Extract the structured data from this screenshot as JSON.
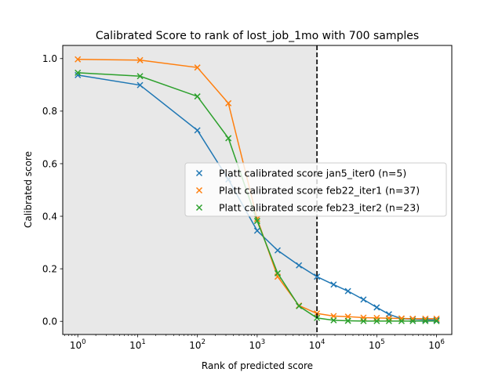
{
  "chart_data": {
    "type": "line",
    "title": "Calibrated Score to rank of lost_job_1mo with 700 samples",
    "xlabel": "Rank of predicted score",
    "ylabel": "Calibrated score",
    "xscale": "log",
    "xlim": [
      0.56,
      1800000
    ],
    "ylim": [
      -0.05,
      1.05
    ],
    "x_ticks": [
      {
        "value": 1,
        "base": "10",
        "exp": "0"
      },
      {
        "value": 10,
        "base": "10",
        "exp": "1"
      },
      {
        "value": 100,
        "base": "10",
        "exp": "2"
      },
      {
        "value": 1000,
        "base": "10",
        "exp": "3"
      },
      {
        "value": 10000,
        "base": "10",
        "exp": "4"
      },
      {
        "value": 100000,
        "base": "10",
        "exp": "5"
      },
      {
        "value": 1000000,
        "base": "10",
        "exp": "6"
      }
    ],
    "y_ticks": [
      {
        "value": 0.0,
        "label": "0.0"
      },
      {
        "value": 0.2,
        "label": "0.2"
      },
      {
        "value": 0.4,
        "label": "0.4"
      },
      {
        "value": 0.6,
        "label": "0.6"
      },
      {
        "value": 0.8,
        "label": "0.8"
      },
      {
        "value": 1.0,
        "label": "1.0"
      }
    ],
    "shaded_region": {
      "x_from": 0.56,
      "x_to": 10000,
      "color": "#e8e8e8"
    },
    "vline": {
      "x": 10000,
      "color": "#000000",
      "style": "dashed"
    },
    "legend_position": "center-right",
    "marker": "x",
    "series": [
      {
        "name": "Platt calibrated score jan5_iter0 (n=5)",
        "color": "#1f77b4",
        "points": [
          [
            1,
            0.937
          ],
          [
            11,
            0.899
          ],
          [
            100,
            0.727
          ],
          [
            330,
            0.54
          ],
          [
            1000,
            0.345
          ],
          [
            2200,
            0.27
          ],
          [
            5000,
            0.213
          ],
          [
            10000,
            0.17
          ],
          [
            19000,
            0.14
          ],
          [
            33000,
            0.115
          ],
          [
            60000,
            0.083
          ],
          [
            100000,
            0.053
          ],
          [
            160000,
            0.027
          ],
          [
            260000,
            0.01
          ],
          [
            400000,
            0.008
          ],
          [
            650000,
            0.006
          ],
          [
            1000000,
            0.005
          ]
        ]
      },
      {
        "name": "Platt calibrated score feb22_iter1 (n=37)",
        "color": "#ff7f0e",
        "points": [
          [
            1,
            0.997
          ],
          [
            11,
            0.994
          ],
          [
            100,
            0.966
          ],
          [
            330,
            0.83
          ],
          [
            1000,
            0.39
          ],
          [
            2200,
            0.17
          ],
          [
            5000,
            0.06
          ],
          [
            10000,
            0.03
          ],
          [
            19000,
            0.02
          ],
          [
            33000,
            0.018
          ],
          [
            60000,
            0.014
          ],
          [
            100000,
            0.013
          ],
          [
            160000,
            0.012
          ],
          [
            260000,
            0.011
          ],
          [
            400000,
            0.01
          ],
          [
            650000,
            0.01
          ],
          [
            1000000,
            0.01
          ]
        ]
      },
      {
        "name": "Platt calibrated score feb23_iter2 (n=23)",
        "color": "#2ca02c",
        "points": [
          [
            1,
            0.946
          ],
          [
            11,
            0.933
          ],
          [
            100,
            0.856
          ],
          [
            330,
            0.697
          ],
          [
            1000,
            0.382
          ],
          [
            2200,
            0.183
          ],
          [
            5000,
            0.058
          ],
          [
            10000,
            0.013
          ],
          [
            19000,
            0.004
          ],
          [
            33000,
            0.002
          ],
          [
            60000,
            0.001
          ],
          [
            100000,
            0.001
          ],
          [
            160000,
            0.001
          ],
          [
            260000,
            0.001
          ],
          [
            400000,
            0.001
          ],
          [
            650000,
            0.001
          ],
          [
            1000000,
            0.001
          ]
        ]
      }
    ]
  }
}
